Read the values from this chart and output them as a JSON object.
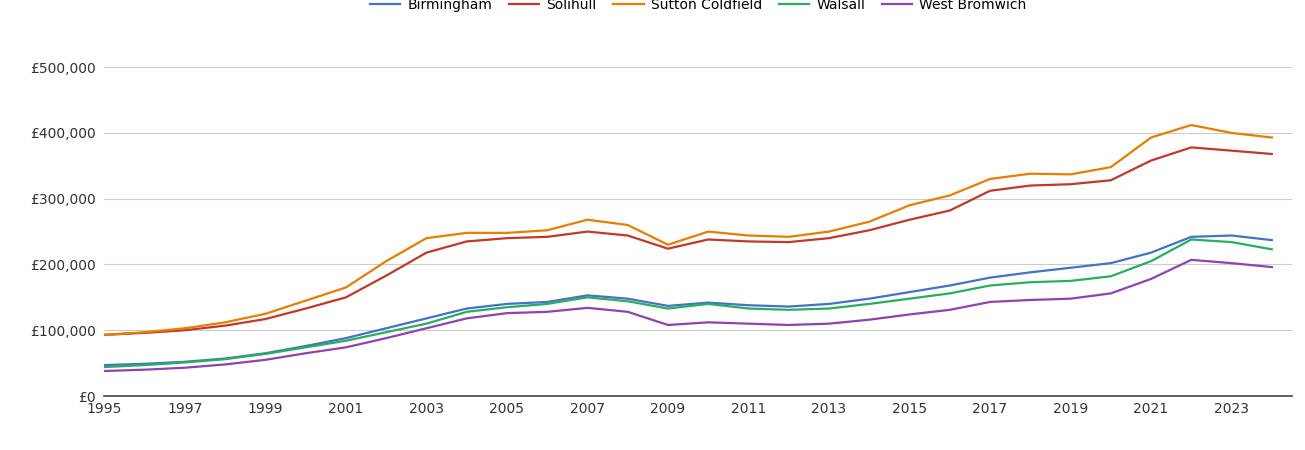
{
  "years": [
    1995,
    1996,
    1997,
    1998,
    1999,
    2000,
    2001,
    2002,
    2003,
    2004,
    2005,
    2006,
    2007,
    2008,
    2009,
    2010,
    2011,
    2012,
    2013,
    2014,
    2015,
    2016,
    2017,
    2018,
    2019,
    2020,
    2021,
    2022,
    2023,
    2024
  ],
  "Birmingham": [
    47000,
    49000,
    52000,
    57000,
    65000,
    76000,
    88000,
    103000,
    118000,
    133000,
    140000,
    143000,
    153000,
    148000,
    137000,
    142000,
    138000,
    136000,
    140000,
    148000,
    158000,
    168000,
    180000,
    188000,
    195000,
    202000,
    218000,
    242000,
    244000,
    237000
  ],
  "Solihull": [
    93000,
    96000,
    100000,
    107000,
    117000,
    133000,
    150000,
    183000,
    218000,
    235000,
    240000,
    242000,
    250000,
    244000,
    224000,
    238000,
    235000,
    234000,
    240000,
    252000,
    268000,
    282000,
    312000,
    320000,
    322000,
    328000,
    358000,
    378000,
    373000,
    368000
  ],
  "Sutton Coldfield": [
    93000,
    97000,
    103000,
    112000,
    125000,
    145000,
    165000,
    205000,
    240000,
    248000,
    248000,
    252000,
    268000,
    260000,
    230000,
    250000,
    244000,
    242000,
    250000,
    265000,
    290000,
    305000,
    330000,
    338000,
    337000,
    348000,
    393000,
    412000,
    400000,
    393000
  ],
  "Walsall": [
    44000,
    47000,
    51000,
    56000,
    64000,
    74000,
    84000,
    97000,
    110000,
    128000,
    135000,
    140000,
    150000,
    144000,
    133000,
    140000,
    133000,
    131000,
    133000,
    140000,
    148000,
    156000,
    168000,
    173000,
    175000,
    182000,
    205000,
    238000,
    234000,
    223000
  ],
  "West Bromwich": [
    38000,
    40000,
    43000,
    48000,
    55000,
    65000,
    74000,
    88000,
    103000,
    118000,
    126000,
    128000,
    134000,
    128000,
    108000,
    112000,
    110000,
    108000,
    110000,
    116000,
    124000,
    131000,
    143000,
    146000,
    148000,
    156000,
    178000,
    207000,
    202000,
    196000
  ],
  "colors": {
    "Birmingham": "#4472c4",
    "Solihull": "#c0392b",
    "Sutton Coldfield": "#e67e00",
    "Walsall": "#27ae60",
    "West Bromwich": "#8e44ad"
  },
  "ylim": [
    0,
    520000
  ],
  "yticks": [
    0,
    100000,
    200000,
    300000,
    400000,
    500000
  ],
  "xlim_left": 1995,
  "xlim_right": 2024.5,
  "background_color": "#ffffff",
  "grid_color": "#cccccc",
  "figwidth": 13.05,
  "figheight": 4.5,
  "dpi": 100
}
